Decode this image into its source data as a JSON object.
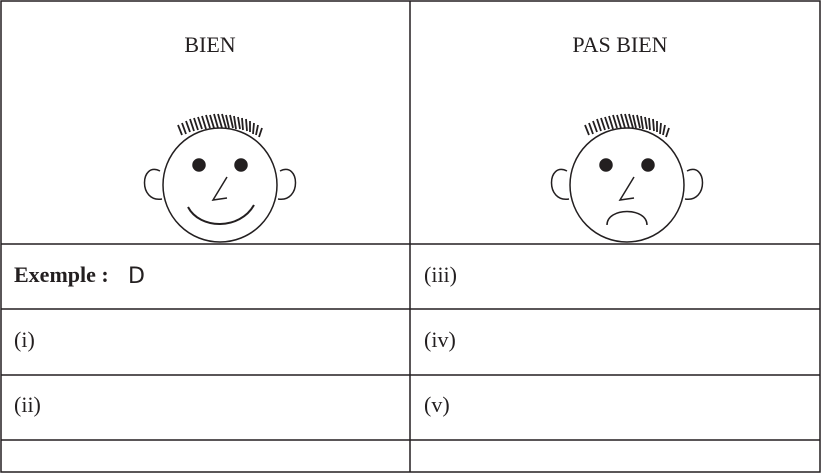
{
  "table": {
    "header": [
      "BIEN",
      "PAS BIEN"
    ],
    "rows": [
      [
        "Exemple :",
        "(iii)"
      ],
      [
        "(i)",
        "(iv)"
      ],
      [
        "(ii)",
        "(v)"
      ]
    ],
    "example_answer": "D"
  }
}
